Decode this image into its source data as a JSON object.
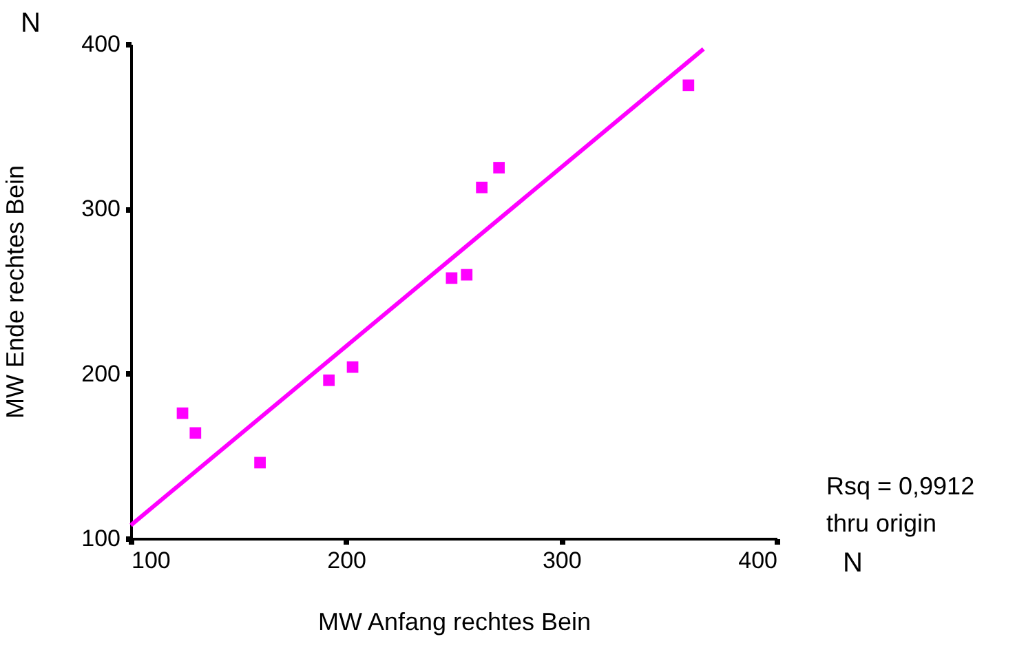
{
  "chart_data": {
    "type": "scatter",
    "xlabel": "MW Anfang rechtes Bein",
    "ylabel": "MW Ende rechtes Bein",
    "x": [
      124,
      130,
      160,
      192,
      203,
      249,
      256,
      263,
      271,
      359
    ],
    "series": [
      {
        "color": "#ff00ff",
        "marker": "square",
        "values": [
          176,
          164,
          146,
          196,
          204,
          258,
          260,
          313,
          325,
          375
        ]
      },
      {
        "type": "line",
        "color": "#ff00ff",
        "line_style": "solid",
        "x": [
          100,
          366
        ],
        "values": [
          108,
          397
        ]
      }
    ],
    "xlim": [
      100,
      400
    ],
    "ylim": [
      100,
      400
    ],
    "xticks": [
      100,
      200,
      300,
      400
    ],
    "yticks": [
      100,
      200,
      300,
      400
    ],
    "grid": false,
    "annotations": [
      "N",
      "N",
      "Rsq = 0,9912",
      "thru origin"
    ]
  }
}
